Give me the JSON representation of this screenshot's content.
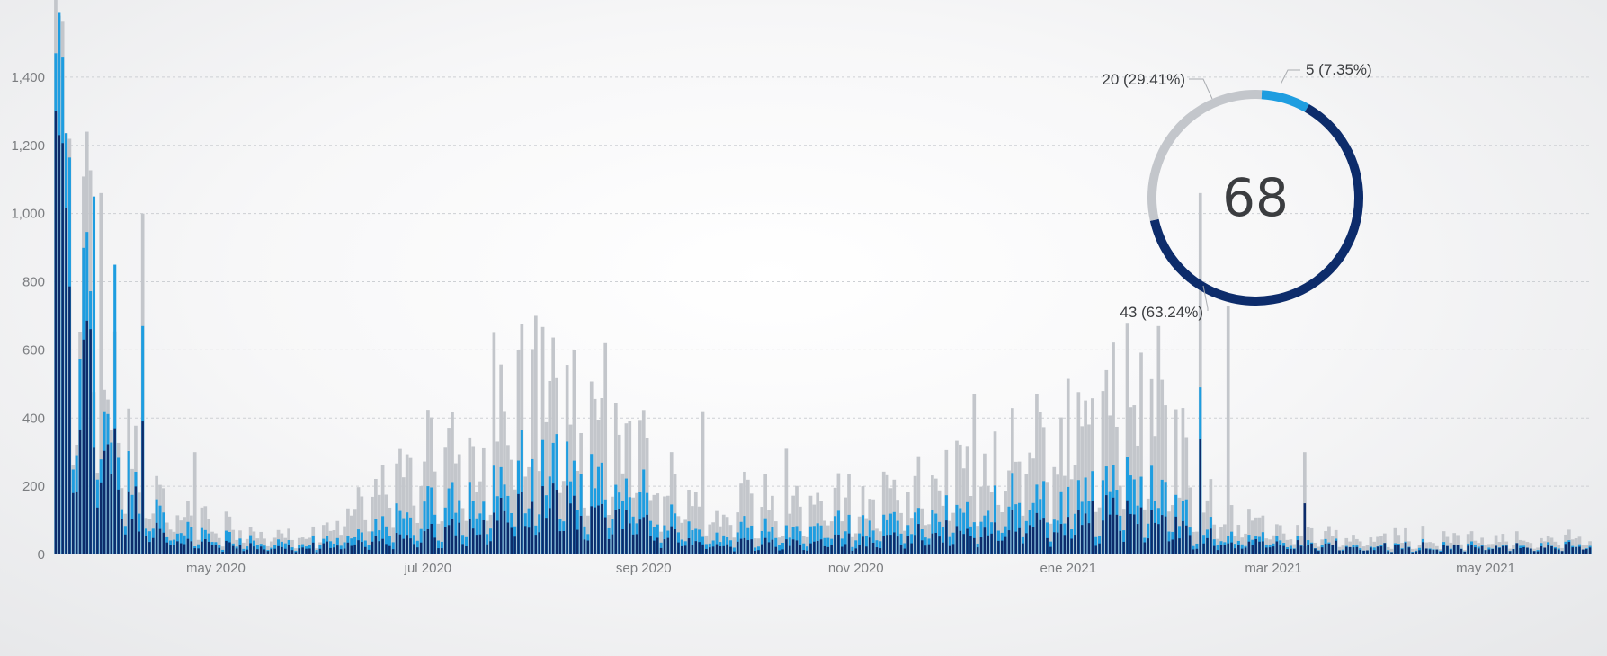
{
  "colors": {
    "gray": "#c3c6cb",
    "light_blue": "#1e9de0",
    "dark_blue": "#0d2c6b",
    "grid": "#cdd0d4"
  },
  "chart_data": [
    {
      "type": "bar",
      "stacked": false,
      "x_type": "date",
      "x_start": "2020-03-16",
      "x_end": "2021-05-31",
      "ylim": [
        0,
        1600
      ],
      "yticks": [
        0,
        200,
        400,
        600,
        800,
        1000,
        1200,
        1400
      ],
      "ytick_labels": [
        "0",
        "200",
        "400",
        "600",
        "800",
        "1,000",
        "1,200",
        "1,400"
      ],
      "xtick_labels": [
        "may 2020",
        "jul 2020",
        "sep 2020",
        "nov 2020",
        "ene 2021",
        "mar 2021",
        "may 2021"
      ],
      "xtick_dates": [
        "2020-05-01",
        "2020-07-01",
        "2020-09-01",
        "2020-11-01",
        "2021-01-01",
        "2021-03-01",
        "2021-05-01"
      ],
      "grid": true,
      "legend": "none",
      "series_colors": [
        "#c3c6cb",
        "#1e9de0",
        "#0d2c6b"
      ],
      "profile": {
        "dates": [
          "2020-03-16",
          "2020-03-20",
          "2020-03-25",
          "2020-04-01",
          "2020-04-10",
          "2020-04-20",
          "2020-05-01",
          "2020-05-15",
          "2020-06-01",
          "2020-06-15",
          "2020-07-01",
          "2020-07-15",
          "2020-08-01",
          "2020-08-15",
          "2020-09-01",
          "2020-09-15",
          "2020-10-01",
          "2020-10-15",
          "2020-11-01",
          "2020-11-15",
          "2020-12-01",
          "2020-12-15",
          "2021-01-01",
          "2021-01-15",
          "2021-02-01",
          "2021-02-15",
          "2021-03-01",
          "2021-03-15",
          "2021-04-01",
          "2021-04-15",
          "2021-05-01",
          "2021-05-31"
        ],
        "gray": [
          1450,
          1000,
          850,
          500,
          220,
          120,
          90,
          60,
          70,
          210,
          300,
          340,
          480,
          370,
          300,
          170,
          150,
          140,
          170,
          200,
          260,
          330,
          380,
          480,
          300,
          120,
          75,
          55,
          55,
          55,
          50,
          48
        ],
        "light_blue": [
          1300,
          900,
          720,
          420,
          130,
          70,
          50,
          35,
          40,
          90,
          140,
          170,
          250,
          200,
          160,
          80,
          70,
          70,
          90,
          100,
          130,
          160,
          170,
          220,
          140,
          55,
          40,
          30,
          30,
          30,
          28,
          28
        ],
        "dark_blue": [
          1000,
          650,
          520,
          300,
          90,
          40,
          30,
          22,
          25,
          40,
          60,
          90,
          150,
          120,
          90,
          40,
          35,
          35,
          40,
          55,
          70,
          90,
          95,
          130,
          80,
          35,
          30,
          25,
          25,
          25,
          25,
          25
        ]
      },
      "spikes": [
        {
          "date": "2020-03-17",
          "series": "gray",
          "value": 1580
        },
        {
          "date": "2020-03-18",
          "series": "light_blue",
          "value": 1460
        },
        {
          "date": "2020-03-17",
          "series": "dark_blue",
          "value": 1230
        },
        {
          "date": "2020-03-25",
          "series": "gray",
          "value": 1240
        },
        {
          "date": "2020-03-27",
          "series": "light_blue",
          "value": 1050
        },
        {
          "date": "2020-03-29",
          "series": "gray",
          "value": 1060
        },
        {
          "date": "2020-04-02",
          "series": "light_blue",
          "value": 850
        },
        {
          "date": "2020-04-10",
          "series": "gray",
          "value": 1000
        },
        {
          "date": "2020-04-10",
          "series": "light_blue",
          "value": 670
        },
        {
          "date": "2020-04-10",
          "series": "dark_blue",
          "value": 390
        },
        {
          "date": "2020-04-25",
          "series": "gray",
          "value": 300
        },
        {
          "date": "2020-07-20",
          "series": "gray",
          "value": 650
        },
        {
          "date": "2020-08-01",
          "series": "gray",
          "value": 700
        },
        {
          "date": "2020-08-21",
          "series": "gray",
          "value": 620
        },
        {
          "date": "2020-09-18",
          "series": "gray",
          "value": 420
        },
        {
          "date": "2020-10-12",
          "series": "gray",
          "value": 310
        },
        {
          "date": "2020-12-05",
          "series": "gray",
          "value": 470
        },
        {
          "date": "2021-01-27",
          "series": "gray",
          "value": 670
        },
        {
          "date": "2021-02-08",
          "series": "gray",
          "value": 1060
        },
        {
          "date": "2021-02-08",
          "series": "light_blue",
          "value": 490
        },
        {
          "date": "2021-02-08",
          "series": "dark_blue",
          "value": 340
        },
        {
          "date": "2021-02-16",
          "series": "gray",
          "value": 730
        },
        {
          "date": "2021-03-10",
          "series": "gray",
          "value": 300
        },
        {
          "date": "2021-03-10",
          "series": "dark_blue",
          "value": 150
        }
      ]
    },
    {
      "type": "pie",
      "style": "donut",
      "center_label": "68",
      "slices": [
        {
          "label": "5 (7.35%)",
          "value": 5,
          "color": "#1e9de0"
        },
        {
          "label": "43 (63.24%)",
          "value": 43,
          "color": "#0d2c6b"
        },
        {
          "label": "20 (29.41%)",
          "value": 20,
          "color": "#c3c6cb"
        }
      ]
    }
  ]
}
